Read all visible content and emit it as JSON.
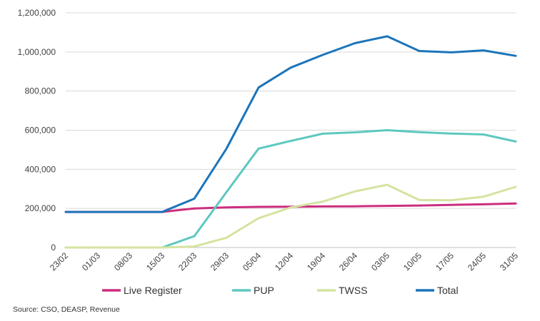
{
  "chart_data": {
    "type": "line",
    "categories": [
      "23/02",
      "01/03",
      "08/03",
      "15/03",
      "22/03",
      "29/03",
      "05/04",
      "12/04",
      "19/04",
      "26/04",
      "03/05",
      "10/05",
      "17/05",
      "24/05",
      "31/05"
    ],
    "series": [
      {
        "name": "Live Register",
        "color": "#cc2e7f",
        "values": [
          182000,
          182000,
          182000,
          182000,
          200000,
          205000,
          208000,
          209000,
          210000,
          211000,
          213000,
          215000,
          218000,
          221000,
          225000
        ]
      },
      {
        "name": "PUP",
        "color": "#5dc8c0",
        "values": [
          0,
          0,
          0,
          0,
          58000,
          283000,
          506000,
          545000,
          582000,
          589000,
          600000,
          590000,
          583000,
          578000,
          542000
        ]
      },
      {
        "name": "TWSS",
        "color": "#d4e3a0",
        "values": [
          0,
          0,
          0,
          0,
          5000,
          50000,
          150000,
          205000,
          235000,
          287000,
          321000,
          243000,
          242000,
          260000,
          310000
        ]
      },
      {
        "name": "Total",
        "color": "#1b75bb",
        "values": [
          182000,
          182000,
          182000,
          182000,
          250000,
          505000,
          818000,
          920000,
          985000,
          1045000,
          1080000,
          1005000,
          998000,
          1008000,
          980000
        ]
      }
    ],
    "y_ticks": [
      "0",
      "200,000",
      "400,000",
      "600,000",
      "800,000",
      "1,000,000",
      "1,200,000"
    ],
    "ylim": [
      0,
      1200000
    ],
    "grid": true,
    "legend_position": "bottom",
    "xlabel": "",
    "ylabel": ""
  },
  "source_note": "Source: CSO, DEASP, Revenue"
}
